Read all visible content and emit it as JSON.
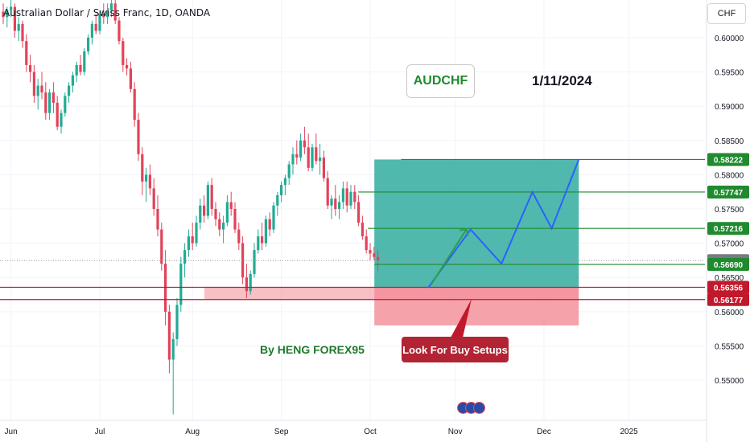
{
  "legend": {
    "title": "Australian Dollar / Swiss Franc, 1D, OANDA"
  },
  "annotations": {
    "pair": "AUDCHF",
    "date": "1/11/2024",
    "author": "By HENG FOREX95",
    "callout": "Look For Buy Setups"
  },
  "axis": {
    "currency": "CHF"
  },
  "colors": {
    "up": "#22ab94",
    "down": "#e1435a",
    "target_zone": "#26a69a",
    "risk_zone": "#f28b96",
    "level_line": "#1f8a2e",
    "support_line": "#c2182b",
    "projection": "#2962ff"
  },
  "chart_data": {
    "type": "candlestick",
    "title": "Australian Dollar / Swiss Franc, 1D, OANDA",
    "symbol": "AUDCHF",
    "ylim": [
      0.5445,
      0.6055
    ],
    "y_ticks": [
      0.6,
      0.595,
      0.59,
      0.585,
      0.58,
      0.575,
      0.57,
      0.565,
      0.56,
      0.555,
      0.55
    ],
    "x_ticks": [
      "Jun",
      "Jul",
      "Aug",
      "Sep",
      "Oct",
      "Nov",
      "Dec",
      "2025"
    ],
    "x_tick_index": [
      2,
      25,
      49,
      72,
      95,
      117,
      140,
      162
    ],
    "candles": [
      [
        0.6038,
        0.605,
        0.602,
        0.603
      ],
      [
        0.603,
        0.6045,
        0.6015,
        0.604
      ],
      [
        0.604,
        0.6055,
        0.603,
        0.6045
      ],
      [
        0.6045,
        0.605,
        0.6,
        0.601
      ],
      [
        0.601,
        0.603,
        0.5995,
        0.602
      ],
      [
        0.602,
        0.6025,
        0.5985,
        0.5995
      ],
      [
        0.5995,
        0.6005,
        0.595,
        0.596
      ],
      [
        0.596,
        0.5975,
        0.5935,
        0.595
      ],
      [
        0.595,
        0.596,
        0.5905,
        0.5915
      ],
      [
        0.5915,
        0.594,
        0.5895,
        0.593
      ],
      [
        0.593,
        0.595,
        0.591,
        0.592
      ],
      [
        0.592,
        0.5935,
        0.588,
        0.589
      ],
      [
        0.589,
        0.5925,
        0.588,
        0.592
      ],
      [
        0.592,
        0.5935,
        0.589,
        0.5905
      ],
      [
        0.5905,
        0.5915,
        0.5865,
        0.587
      ],
      [
        0.587,
        0.5895,
        0.586,
        0.589
      ],
      [
        0.589,
        0.592,
        0.5885,
        0.5915
      ],
      [
        0.5915,
        0.5935,
        0.5905,
        0.593
      ],
      [
        0.593,
        0.595,
        0.592,
        0.5945
      ],
      [
        0.5945,
        0.5965,
        0.5935,
        0.596
      ],
      [
        0.596,
        0.5975,
        0.5945,
        0.595
      ],
      [
        0.595,
        0.5985,
        0.5945,
        0.598
      ],
      [
        0.598,
        0.6005,
        0.5975,
        0.6
      ],
      [
        0.6,
        0.6025,
        0.599,
        0.602
      ],
      [
        0.602,
        0.6035,
        0.6005,
        0.601
      ],
      [
        0.601,
        0.604,
        0.6005,
        0.6035
      ],
      [
        0.6035,
        0.605,
        0.602,
        0.603
      ],
      [
        0.603,
        0.605,
        0.602,
        0.604
      ],
      [
        0.604,
        0.6055,
        0.603,
        0.605
      ],
      [
        0.605,
        0.6055,
        0.602,
        0.6025
      ],
      [
        0.6025,
        0.603,
        0.599,
        0.5995
      ],
      [
        0.5995,
        0.6,
        0.595,
        0.596
      ],
      [
        0.596,
        0.597,
        0.5945,
        0.5955
      ],
      [
        0.5955,
        0.5965,
        0.592,
        0.5925
      ],
      [
        0.5925,
        0.5935,
        0.587,
        0.588
      ],
      [
        0.588,
        0.589,
        0.582,
        0.583
      ],
      [
        0.583,
        0.584,
        0.577,
        0.579
      ],
      [
        0.579,
        0.581,
        0.576,
        0.58
      ],
      [
        0.58,
        0.5815,
        0.577,
        0.578
      ],
      [
        0.578,
        0.5795,
        0.574,
        0.575
      ],
      [
        0.575,
        0.577,
        0.571,
        0.572
      ],
      [
        0.572,
        0.573,
        0.566,
        0.567
      ],
      [
        0.567,
        0.569,
        0.558,
        0.56
      ],
      [
        0.56,
        0.561,
        0.551,
        0.553
      ],
      [
        0.553,
        0.557,
        0.545,
        0.556
      ],
      [
        0.556,
        0.562,
        0.555,
        0.561
      ],
      [
        0.561,
        0.568,
        0.56,
        0.567
      ],
      [
        0.567,
        0.57,
        0.565,
        0.569
      ],
      [
        0.569,
        0.572,
        0.568,
        0.571
      ],
      [
        0.571,
        0.573,
        0.569,
        0.57
      ],
      [
        0.57,
        0.574,
        0.5695,
        0.573
      ],
      [
        0.573,
        0.5765,
        0.572,
        0.5755
      ],
      [
        0.5755,
        0.577,
        0.573,
        0.574
      ],
      [
        0.574,
        0.579,
        0.5735,
        0.5785
      ],
      [
        0.5785,
        0.5795,
        0.574,
        0.575
      ],
      [
        0.575,
        0.576,
        0.5725,
        0.5735
      ],
      [
        0.5735,
        0.5745,
        0.571,
        0.572
      ],
      [
        0.572,
        0.574,
        0.57,
        0.573
      ],
      [
        0.573,
        0.577,
        0.5725,
        0.576
      ],
      [
        0.576,
        0.5775,
        0.574,
        0.575
      ],
      [
        0.575,
        0.576,
        0.5715,
        0.572
      ],
      [
        0.572,
        0.573,
        0.569,
        0.57
      ],
      [
        0.57,
        0.571,
        0.564,
        0.565
      ],
      [
        0.565,
        0.567,
        0.562,
        0.563
      ],
      [
        0.563,
        0.566,
        0.5625,
        0.5655
      ],
      [
        0.5655,
        0.57,
        0.565,
        0.569
      ],
      [
        0.569,
        0.572,
        0.5685,
        0.571
      ],
      [
        0.571,
        0.573,
        0.569,
        0.57
      ],
      [
        0.57,
        0.574,
        0.5695,
        0.5735
      ],
      [
        0.5735,
        0.5745,
        0.571,
        0.572
      ],
      [
        0.572,
        0.576,
        0.5715,
        0.5755
      ],
      [
        0.5755,
        0.5775,
        0.574,
        0.577
      ],
      [
        0.577,
        0.579,
        0.576,
        0.5785
      ],
      [
        0.5785,
        0.58,
        0.577,
        0.5795
      ],
      [
        0.5795,
        0.582,
        0.5785,
        0.5815
      ],
      [
        0.5815,
        0.584,
        0.58,
        0.583
      ],
      [
        0.583,
        0.585,
        0.5815,
        0.5825
      ],
      [
        0.5825,
        0.586,
        0.582,
        0.585
      ],
      [
        0.585,
        0.587,
        0.583,
        0.584
      ],
      [
        0.584,
        0.586,
        0.5805,
        0.581
      ],
      [
        0.581,
        0.5845,
        0.5805,
        0.584
      ],
      [
        0.584,
        0.586,
        0.5815,
        0.582
      ],
      [
        0.582,
        0.5845,
        0.58,
        0.5825
      ],
      [
        0.5825,
        0.5835,
        0.579,
        0.5795
      ],
      [
        0.5795,
        0.5805,
        0.575,
        0.5755
      ],
      [
        0.5755,
        0.577,
        0.5735,
        0.5765
      ],
      [
        0.5765,
        0.5785,
        0.574,
        0.575
      ],
      [
        0.575,
        0.577,
        0.5735,
        0.576
      ],
      [
        0.576,
        0.579,
        0.575,
        0.578
      ],
      [
        0.578,
        0.579,
        0.5745,
        0.5755
      ],
      [
        0.5755,
        0.5785,
        0.575,
        0.5775
      ],
      [
        0.5775,
        0.5785,
        0.575,
        0.576
      ],
      [
        0.576,
        0.577,
        0.5725,
        0.573
      ],
      [
        0.573,
        0.574,
        0.5705,
        0.571
      ],
      [
        0.571,
        0.572,
        0.5685,
        0.569
      ],
      [
        0.569,
        0.57,
        0.5675,
        0.5685
      ],
      [
        0.5685,
        0.5695,
        0.5675,
        0.568
      ],
      [
        0.568,
        0.569,
        0.566,
        0.5675
      ]
    ],
    "projection_path": [
      [
        0.5635,
        110
      ],
      [
        0.572,
        121
      ],
      [
        0.567,
        129
      ],
      [
        0.57747,
        137
      ],
      [
        0.57216,
        142
      ],
      [
        0.58222,
        149
      ]
    ],
    "levels": {
      "tp3": 0.58222,
      "tp2": 0.57747,
      "tp1": 0.57216,
      "entry": 0.5669,
      "last": 0.56746,
      "support_top": 0.56356,
      "support_bottom": 0.56177
    },
    "price_labels": [
      "0.58222",
      "0.57747",
      "0.57216",
      "0.56746",
      "0.56690",
      "0.56356",
      "0.56177"
    ],
    "support_zone": [
      0.56177,
      0.56356
    ],
    "target_zone": [
      0.56356,
      0.58222
    ],
    "risk_zone": [
      0.558,
      0.56356
    ]
  }
}
